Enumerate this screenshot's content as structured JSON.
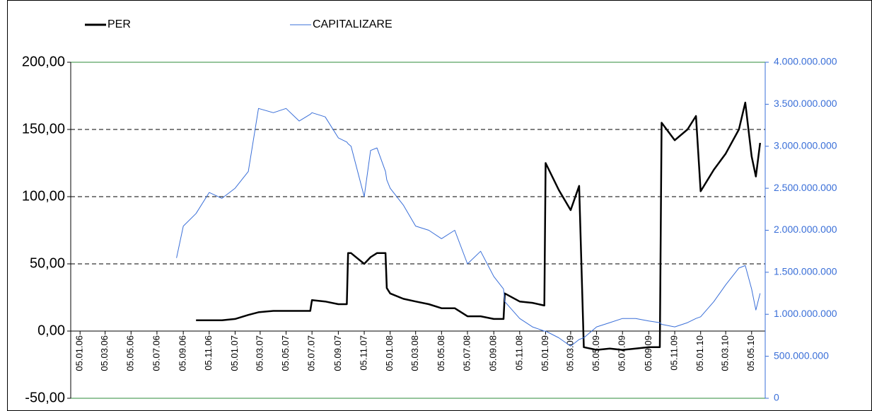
{
  "chart_data": {
    "type": "line",
    "x": [
      "20.08.06",
      "05.09.06",
      "05.10.06",
      "05.11.06",
      "05.12.06",
      "05.01.07",
      "05.02.07",
      "01.03.07",
      "05.04.07",
      "05.05.07",
      "05.06.07",
      "01.07.07",
      "05.07.07",
      "05.08.07",
      "05.09.07",
      "25.09.07",
      "28.09.07",
      "05.10.07",
      "05.11.07",
      "20.11.07",
      "05.12.07",
      "25.12.07",
      "28.12.07",
      "05.01.08",
      "05.02.08",
      "05.03.08",
      "05.04.08",
      "05.05.08",
      "05.06.08",
      "05.07.08",
      "05.08.08",
      "05.09.08",
      "28.09.08",
      "01.10.08",
      "05.11.08",
      "05.12.08",
      "02.01.09",
      "05.01.09",
      "05.02.09",
      "05.03.09",
      "25.03.09",
      "05.04.09",
      "05.05.09",
      "05.06.09",
      "05.07.09",
      "05.08.09",
      "05.09.09",
      "01.10.09",
      "05.10.09",
      "05.11.09",
      "05.12.09",
      "25.12.09",
      "05.01.10",
      "05.02.10",
      "05.03.10",
      "05.04.10",
      "20.04.10",
      "05.05.10",
      "15.05.10",
      "25.05.10"
    ],
    "series": [
      {
        "name": "PER",
        "color": "#000000",
        "axis": "y",
        "values": [
          null,
          null,
          8,
          8,
          8,
          9,
          12,
          14,
          15,
          15,
          15,
          15,
          23,
          22,
          20,
          20,
          58,
          58,
          50,
          55,
          58,
          58,
          32,
          28,
          24,
          22,
          20,
          17,
          17,
          11,
          11,
          9,
          9,
          28,
          22,
          21,
          19,
          125,
          105,
          90,
          108,
          -12,
          -14,
          -13,
          -14,
          -13,
          -12,
          -12,
          155,
          142,
          150,
          160,
          104,
          120,
          132,
          150,
          170,
          130,
          115,
          140
        ]
      },
      {
        "name": "CAPITALIZARE",
        "color": "#3a6fd8",
        "axis": "y2",
        "values": [
          1670000000,
          2050000000,
          2200000000,
          2450000000,
          2380000000,
          2500000000,
          2700000000,
          3450000000,
          3400000000,
          3450000000,
          3300000000,
          3380000000,
          3400000000,
          3350000000,
          3100000000,
          3050000000,
          3030000000,
          3000000000,
          2400000000,
          2950000000,
          2980000000,
          2700000000,
          2600000000,
          2500000000,
          2300000000,
          2050000000,
          2000000000,
          1900000000,
          2000000000,
          1600000000,
          1750000000,
          1450000000,
          1300000000,
          1150000000,
          950000000,
          850000000,
          800000000,
          800000000,
          720000000,
          620000000,
          700000000,
          720000000,
          850000000,
          900000000,
          950000000,
          950000000,
          920000000,
          900000000,
          880000000,
          850000000,
          900000000,
          950000000,
          970000000,
          1150000000,
          1350000000,
          1550000000,
          1580000000,
          1300000000,
          1050000000,
          1250000000
        ]
      }
    ],
    "xlim": [
      "14.12.05",
      "06.06.10"
    ],
    "xticks": [
      "05.01.06",
      "05.03.06",
      "05.05.06",
      "05.07.06",
      "05.09.06",
      "05.11.06",
      "05.01.07",
      "05.03.07",
      "05.05.07",
      "05.07.07",
      "05.09.07",
      "05.11.07",
      "05.01.08",
      "05.03.08",
      "05.05.08",
      "05.07.08",
      "05.09.08",
      "05.11.08",
      "05.01.09",
      "05.03.09",
      "05.05.09",
      "05.07.09",
      "05.09.09",
      "05.11.09",
      "05.01.10",
      "05.03.10",
      "05.05.10"
    ],
    "ylim": [
      -50,
      200
    ],
    "yticks": [
      {
        "value": -50,
        "label": "-50,00"
      },
      {
        "value": 0,
        "label": "0,00"
      },
      {
        "value": 50,
        "label": "50,00"
      },
      {
        "value": 100,
        "label": "100,00"
      },
      {
        "value": 150,
        "label": "150,00"
      },
      {
        "value": 200,
        "label": "200,00"
      }
    ],
    "y2lim": [
      0,
      4000000000
    ],
    "y2ticks": [
      0,
      {
        "value": 500000000,
        "label": "500.000.000"
      },
      {
        "value": 1000000000,
        "label": "1.000.000.000"
      },
      {
        "value": 1500000000,
        "label": "1.500.000.000"
      },
      {
        "value": 2000000000,
        "label": "2.000.000.000"
      },
      {
        "value": 2500000000,
        "label": "2.500.000.000"
      },
      {
        "value": 3000000000,
        "label": "3.000.000.000"
      },
      {
        "value": 3500000000,
        "label": "3.500.000.000"
      },
      {
        "value": 4000000000,
        "label": "4.000.000.000"
      }
    ],
    "grid": true,
    "legend": "top"
  }
}
